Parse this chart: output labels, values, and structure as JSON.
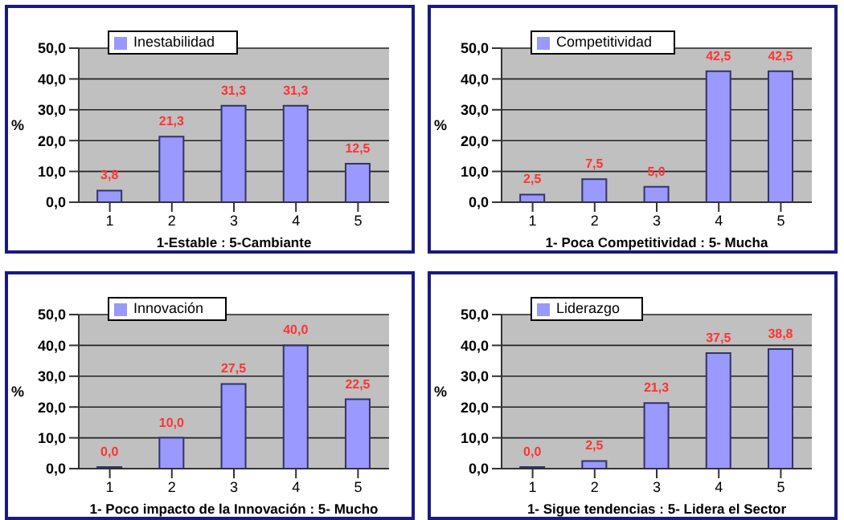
{
  "chart_data": [
    {
      "type": "bar",
      "xlabel": "1-Estable :  5-Cambiante",
      "ylabel": "%",
      "categories": [
        "1",
        "2",
        "3",
        "4",
        "5"
      ],
      "series": [
        {
          "name": "Inestabilidad",
          "color": "#9999ff",
          "values": [
            3.8,
            21.3,
            31.3,
            31.3,
            12.5
          ],
          "value_labels": [
            "3,8",
            "21,3",
            "31,3",
            "31,3",
            "12,5"
          ]
        }
      ],
      "ylim": [
        0,
        50
      ],
      "yticks": [
        {
          "value": 0,
          "label": "0,0"
        },
        {
          "value": 10,
          "label": "10,0"
        },
        {
          "value": 20,
          "label": "20,0"
        },
        {
          "value": 30,
          "label": "30,0"
        },
        {
          "value": 40,
          "label": "40,0"
        },
        {
          "value": 50,
          "label": "50,0"
        }
      ],
      "grid": "y",
      "legend": "top left"
    },
    {
      "type": "bar",
      "xlabel": "1- Poca Competitividad :  5- Mucha",
      "ylabel": "%",
      "categories": [
        "1",
        "2",
        "3",
        "4",
        "5"
      ],
      "series": [
        {
          "name": "Competitividad",
          "color": "#9999ff",
          "values": [
            2.5,
            7.5,
            5.0,
            42.5,
            42.5
          ],
          "value_labels": [
            "2,5",
            "7,5",
            "5,0",
            "42,5",
            "42,5"
          ]
        }
      ],
      "ylim": [
        0,
        50
      ],
      "yticks": [
        {
          "value": 0,
          "label": "0,0"
        },
        {
          "value": 10,
          "label": "10,0"
        },
        {
          "value": 20,
          "label": "20,0"
        },
        {
          "value": 30,
          "label": "30,0"
        },
        {
          "value": 40,
          "label": "40,0"
        },
        {
          "value": 50,
          "label": "50,0"
        }
      ],
      "grid": "y",
      "legend": "top left"
    },
    {
      "type": "bar",
      "xlabel": "1- Poco impacto de la Innovación :  5- Mucho",
      "ylabel": "%",
      "categories": [
        "1",
        "2",
        "3",
        "4",
        "5"
      ],
      "series": [
        {
          "name": "Innovación",
          "color": "#9999ff",
          "values": [
            0.0,
            10.0,
            27.5,
            40.0,
            22.5
          ],
          "value_labels": [
            "0,0",
            "10,0",
            "27,5",
            "40,0",
            "22,5"
          ]
        }
      ],
      "ylim": [
        0,
        50
      ],
      "yticks": [
        {
          "value": 0,
          "label": "0,0"
        },
        {
          "value": 10,
          "label": "10,0"
        },
        {
          "value": 20,
          "label": "20,0"
        },
        {
          "value": 30,
          "label": "30,0"
        },
        {
          "value": 40,
          "label": "40,0"
        },
        {
          "value": 50,
          "label": "50,0"
        }
      ],
      "grid": "y",
      "legend": "top left"
    },
    {
      "type": "bar",
      "xlabel": "1- Sigue tendencias :  5- Lidera el Sector",
      "ylabel": "%",
      "categories": [
        "1",
        "2",
        "3",
        "4",
        "5"
      ],
      "series": [
        {
          "name": "Liderazgo",
          "color": "#9999ff",
          "values": [
            0.0,
            2.5,
            21.3,
            37.5,
            38.8
          ],
          "value_labels": [
            "0,0",
            "2,5",
            "21,3",
            "37,5",
            "38,8"
          ]
        }
      ],
      "ylim": [
        0,
        50
      ],
      "yticks": [
        {
          "value": 0,
          "label": "0,0"
        },
        {
          "value": 10,
          "label": "10,0"
        },
        {
          "value": 20,
          "label": "20,0"
        },
        {
          "value": 30,
          "label": "30,0"
        },
        {
          "value": 40,
          "label": "40,0"
        },
        {
          "value": 50,
          "label": "50,0"
        }
      ],
      "grid": "y",
      "legend": "top left"
    }
  ]
}
